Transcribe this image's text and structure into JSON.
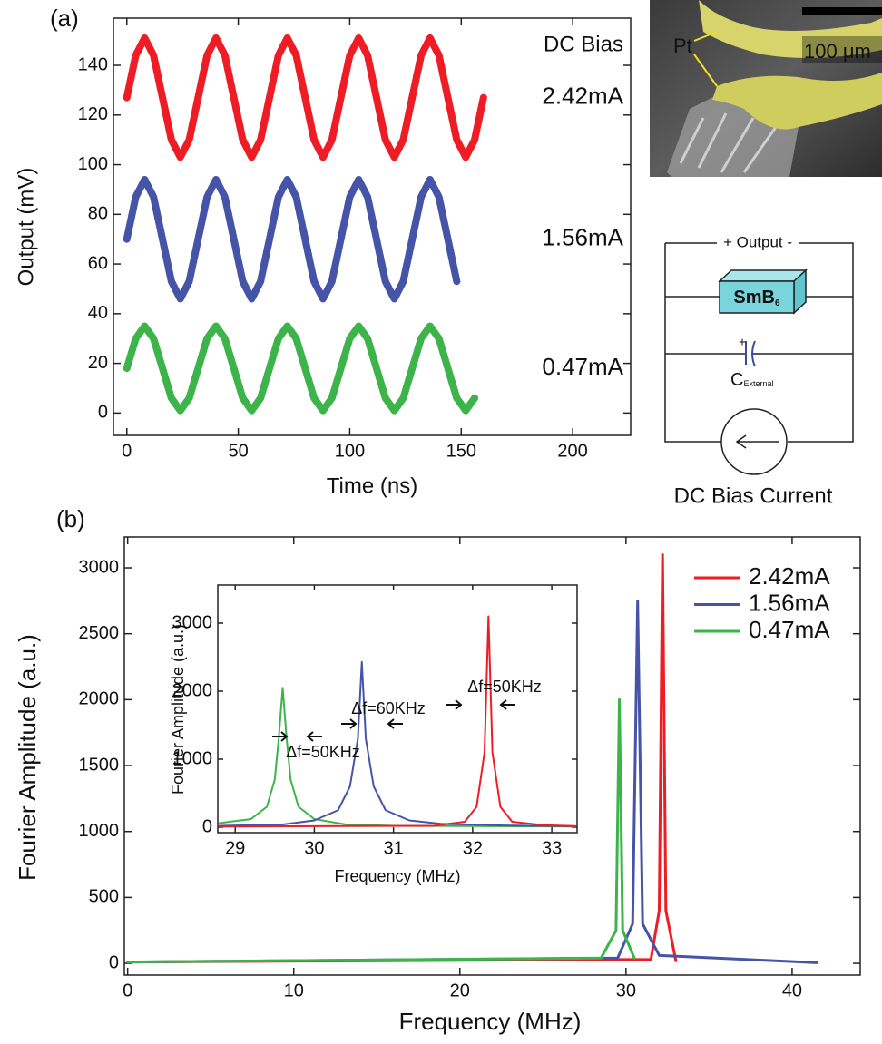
{
  "panel_labels": [
    "(a)",
    "(b)"
  ],
  "chart_data": [
    {
      "type": "line",
      "x_label": "Time (ns)",
      "y_label": "Output (mV)",
      "xlim": [
        -6,
        226
      ],
      "xticks": [
        0,
        50,
        100,
        150,
        200
      ],
      "ylim": [
        -9,
        159
      ],
      "yticks": [
        0,
        20,
        40,
        60,
        80,
        100,
        120,
        140
      ],
      "legend": "right",
      "legend_title": "DC Bias",
      "series": [
        {
          "name": "2.42mA",
          "color": "#ee1c25",
          "x": [
            0,
            4,
            8,
            12,
            16,
            20,
            24,
            28,
            32,
            36,
            40,
            44,
            48,
            52,
            56,
            60,
            64,
            68,
            72,
            76,
            80,
            84,
            88,
            92,
            96,
            100,
            104,
            108,
            112,
            116,
            120,
            124,
            128,
            132,
            136,
            140,
            144,
            148,
            152,
            156,
            160
          ],
          "values": [
            127,
            144,
            151,
            144,
            127,
            110,
            103,
            110,
            127,
            144,
            151,
            144,
            127,
            110,
            103,
            110,
            127,
            144,
            151,
            144,
            127,
            110,
            103,
            110,
            127,
            144,
            151,
            144,
            127,
            110,
            103,
            110,
            127,
            144,
            151,
            144,
            127,
            110,
            103,
            110,
            127
          ]
        },
        {
          "name": "1.56mA",
          "color": "#4654a8",
          "x": [
            0,
            4,
            8,
            12,
            16,
            20,
            24,
            28,
            32,
            36,
            40,
            44,
            48,
            52,
            56,
            60,
            64,
            68,
            72,
            76,
            80,
            84,
            88,
            92,
            96,
            100,
            104,
            108,
            112,
            116,
            120,
            124,
            128,
            132,
            136,
            140,
            144,
            148
          ],
          "values": [
            70,
            87,
            94,
            87,
            70,
            53,
            46,
            53,
            70,
            87,
            94,
            87,
            70,
            53,
            46,
            53,
            70,
            87,
            94,
            87,
            70,
            53,
            46,
            53,
            70,
            87,
            94,
            87,
            70,
            53,
            46,
            53,
            70,
            87,
            94,
            87,
            70,
            53
          ]
        },
        {
          "name": "0.47mA",
          "color": "#3cb44a",
          "x": [
            0,
            4,
            8,
            12,
            16,
            20,
            24,
            28,
            32,
            36,
            40,
            44,
            48,
            52,
            56,
            60,
            64,
            68,
            72,
            76,
            80,
            84,
            88,
            92,
            96,
            100,
            104,
            108,
            112,
            116,
            120,
            124,
            128,
            132,
            136,
            140,
            144,
            148,
            152,
            156
          ],
          "values": [
            18,
            30,
            35,
            30,
            18,
            6,
            1,
            6,
            18,
            30,
            35,
            30,
            18,
            6,
            1,
            6,
            18,
            30,
            35,
            30,
            18,
            6,
            1,
            6,
            18,
            30,
            35,
            30,
            18,
            6,
            1,
            6,
            18,
            30,
            35,
            30,
            18,
            6,
            1,
            6
          ]
        }
      ]
    },
    {
      "type": "line",
      "x_label": "Frequency (MHz)",
      "y_label": "Fourier Amplitude (a.u.)",
      "xlim": [
        -0.2,
        44.1
      ],
      "xticks": [
        0,
        10,
        20,
        30,
        40
      ],
      "ylim": [
        -89,
        3234
      ],
      "yticks": [
        0,
        500,
        1000,
        1500,
        2000,
        2500,
        3000
      ],
      "legend": "upper right",
      "series": [
        {
          "name": "2.42mA",
          "color": "#ee1c25",
          "x": [
            0,
            31.5,
            32.0,
            32.2,
            32.4,
            33.0
          ],
          "values": [
            10,
            30,
            400,
            3100,
            400,
            20
          ]
        },
        {
          "name": "1.56mA",
          "color": "#4654a8",
          "x": [
            0,
            29.5,
            30.4,
            30.7,
            31.0,
            32,
            41.5
          ],
          "values": [
            10,
            40,
            300,
            2750,
            300,
            60,
            5
          ]
        },
        {
          "name": "0.47mA",
          "color": "#3cb44a",
          "x": [
            0,
            28.5,
            29.4,
            29.6,
            29.8,
            30.5
          ],
          "values": [
            10,
            40,
            250,
            2000,
            250,
            40
          ]
        }
      ]
    },
    {
      "type": "line",
      "x_label": "Frequency (MHz)",
      "y_label": "Fourier Amplitude (a.u.)",
      "xlim": [
        28.78,
        33.32
      ],
      "xticks": [
        29,
        30,
        31,
        32,
        33
      ],
      "ylim": [
        -80,
        3560
      ],
      "yticks": [
        0,
        1000,
        2000,
        3000
      ],
      "annotations": [
        "Δf=50KHz",
        "Δf=60KHz",
        "Δf=50KHz"
      ],
      "series": [
        {
          "color": "#3cb44a",
          "x": [
            28.8,
            29.2,
            29.4,
            29.5,
            29.55,
            29.6,
            29.65,
            29.7,
            29.8,
            30.0,
            30.4,
            31.0,
            33.3
          ],
          "values": [
            60,
            120,
            300,
            700,
            1300,
            2050,
            1300,
            700,
            300,
            120,
            40,
            20,
            10
          ]
        },
        {
          "color": "#4654a8",
          "x": [
            28.8,
            29.6,
            30.0,
            30.3,
            30.45,
            30.55,
            30.6,
            30.65,
            30.75,
            30.9,
            31.2,
            31.6,
            32.4,
            33.3
          ],
          "values": [
            20,
            40,
            100,
            250,
            600,
            1300,
            2430,
            1300,
            600,
            250,
            100,
            50,
            25,
            15
          ]
        },
        {
          "color": "#ee1c25",
          "x": [
            28.8,
            31.5,
            31.9,
            32.05,
            32.15,
            32.2,
            32.25,
            32.35,
            32.5,
            32.9,
            33.3
          ],
          "values": [
            10,
            20,
            80,
            300,
            1100,
            3100,
            1100,
            300,
            80,
            30,
            15
          ]
        }
      ]
    }
  ],
  "image": {
    "label": "Pt",
    "scale_bar": "100 μm"
  },
  "circuit": {
    "output_label": "+ Output -",
    "box_label": "SmB",
    "box_label_sub": "6",
    "capacitor_sign": "+",
    "capacitor_label": "C",
    "capacitor_label_sub": "External",
    "source_label": "DC Bias Current"
  }
}
